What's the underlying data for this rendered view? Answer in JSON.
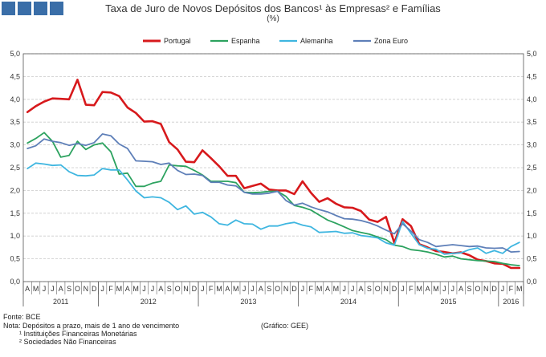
{
  "header": {
    "title": "Taxa de Juro de Novos Depósitos dos Bancos¹ às Empresas² e Famílias",
    "subtitle": "(%)"
  },
  "footer": {
    "source": "Fonte: BCE",
    "note": "Nota: Depósitos a prazo, mais de 1 ano de vencimento",
    "note1": "¹ Instituições Financeiras Monetárias",
    "note2": "² Sociedades Não Financeiras",
    "credit": "(Gráfico: GEE)"
  },
  "chart_data": {
    "type": "line",
    "ylim": [
      0,
      5
    ],
    "yticks": [
      "0,0",
      "0,5",
      "1,0",
      "1,5",
      "2,0",
      "2,5",
      "3,0",
      "3,5",
      "4,0",
      "4,5",
      "5,0"
    ],
    "x": [
      "A",
      "M",
      "J",
      "J",
      "A",
      "S",
      "O",
      "N",
      "D",
      "J",
      "F",
      "M",
      "A",
      "M",
      "J",
      "J",
      "A",
      "S",
      "O",
      "N",
      "D",
      "J",
      "F",
      "M",
      "A",
      "M",
      "J",
      "J",
      "A",
      "S",
      "O",
      "N",
      "D",
      "J",
      "F",
      "M",
      "A",
      "M",
      "J",
      "J",
      "A",
      "S",
      "O",
      "N",
      "D",
      "J",
      "F",
      "M",
      "A",
      "M",
      "J",
      "J",
      "A",
      "S",
      "O",
      "N",
      "D",
      "J",
      "F",
      "M"
    ],
    "years": [
      {
        "label": "2011",
        "start": 0,
        "end": 8
      },
      {
        "label": "2012",
        "start": 9,
        "end": 20
      },
      {
        "label": "2013",
        "start": 21,
        "end": 32
      },
      {
        "label": "2014",
        "start": 33,
        "end": 44
      },
      {
        "label": "2015",
        "start": 45,
        "end": 56
      },
      {
        "label": "2016",
        "start": 57,
        "end": 59
      }
    ],
    "series": [
      {
        "name": "Portugal",
        "color": "#d7191c",
        "width": 2.6,
        "values": [
          3.72,
          3.85,
          3.95,
          4.02,
          4.01,
          4.0,
          4.43,
          3.88,
          3.87,
          4.16,
          4.15,
          4.07,
          3.82,
          3.7,
          3.51,
          3.52,
          3.46,
          3.06,
          2.9,
          2.63,
          2.62,
          2.88,
          2.71,
          2.53,
          2.32,
          2.32,
          2.05,
          2.1,
          2.15,
          2.02,
          2.0,
          2.0,
          1.92,
          2.2,
          1.95,
          1.75,
          1.83,
          1.71,
          1.63,
          1.62,
          1.55,
          1.36,
          1.31,
          1.42,
          0.85,
          1.37,
          1.22,
          0.82,
          0.75,
          0.67,
          0.65,
          0.62,
          0.64,
          0.58,
          0.48,
          0.45,
          0.4,
          0.39,
          0.3,
          0.3
        ]
      },
      {
        "name": "Espanha",
        "color": "#2ca25f",
        "width": 1.8,
        "values": [
          3.04,
          3.14,
          3.27,
          3.08,
          2.73,
          2.77,
          3.08,
          2.9,
          3.0,
          3.04,
          2.85,
          2.36,
          2.38,
          2.09,
          2.09,
          2.16,
          2.2,
          2.56,
          2.54,
          2.53,
          2.44,
          2.34,
          2.2,
          2.2,
          2.2,
          2.17,
          1.96,
          1.95,
          1.96,
          1.98,
          1.98,
          1.87,
          1.67,
          1.63,
          1.57,
          1.46,
          1.35,
          1.28,
          1.2,
          1.12,
          1.08,
          1.04,
          0.98,
          0.92,
          0.8,
          0.77,
          0.7,
          0.68,
          0.65,
          0.6,
          0.54,
          0.56,
          0.5,
          0.48,
          0.46,
          0.45,
          0.44,
          0.4,
          0.37,
          0.35
        ]
      },
      {
        "name": "Alemanha",
        "color": "#3fb6e0",
        "width": 1.8,
        "values": [
          2.48,
          2.6,
          2.58,
          2.55,
          2.56,
          2.41,
          2.33,
          2.32,
          2.34,
          2.48,
          2.45,
          2.45,
          2.23,
          1.99,
          1.84,
          1.86,
          1.84,
          1.74,
          1.58,
          1.66,
          1.48,
          1.52,
          1.42,
          1.27,
          1.24,
          1.35,
          1.27,
          1.26,
          1.15,
          1.22,
          1.22,
          1.27,
          1.3,
          1.24,
          1.2,
          1.08,
          1.09,
          1.1,
          1.06,
          1.07,
          1.01,
          0.99,
          0.96,
          0.85,
          0.8,
          1.32,
          1.06,
          0.81,
          0.73,
          0.71,
          0.6,
          0.62,
          0.63,
          0.7,
          0.74,
          0.62,
          0.68,
          0.62,
          0.77,
          0.86
        ]
      },
      {
        "name": "Zona Euro",
        "color": "#5e7fb8",
        "width": 1.8,
        "values": [
          2.92,
          2.98,
          3.13,
          3.08,
          3.05,
          2.99,
          3.03,
          2.99,
          3.05,
          3.24,
          3.2,
          3.02,
          2.92,
          2.65,
          2.64,
          2.63,
          2.57,
          2.6,
          2.44,
          2.35,
          2.36,
          2.33,
          2.18,
          2.18,
          2.12,
          2.1,
          1.96,
          1.92,
          1.92,
          1.94,
          1.98,
          1.78,
          1.68,
          1.72,
          1.64,
          1.58,
          1.53,
          1.45,
          1.38,
          1.37,
          1.34,
          1.29,
          1.22,
          1.13,
          1.05,
          1.27,
          1.11,
          0.92,
          0.86,
          0.77,
          0.79,
          0.81,
          0.79,
          0.77,
          0.78,
          0.74,
          0.73,
          0.74,
          0.65,
          0.66
        ]
      }
    ]
  }
}
